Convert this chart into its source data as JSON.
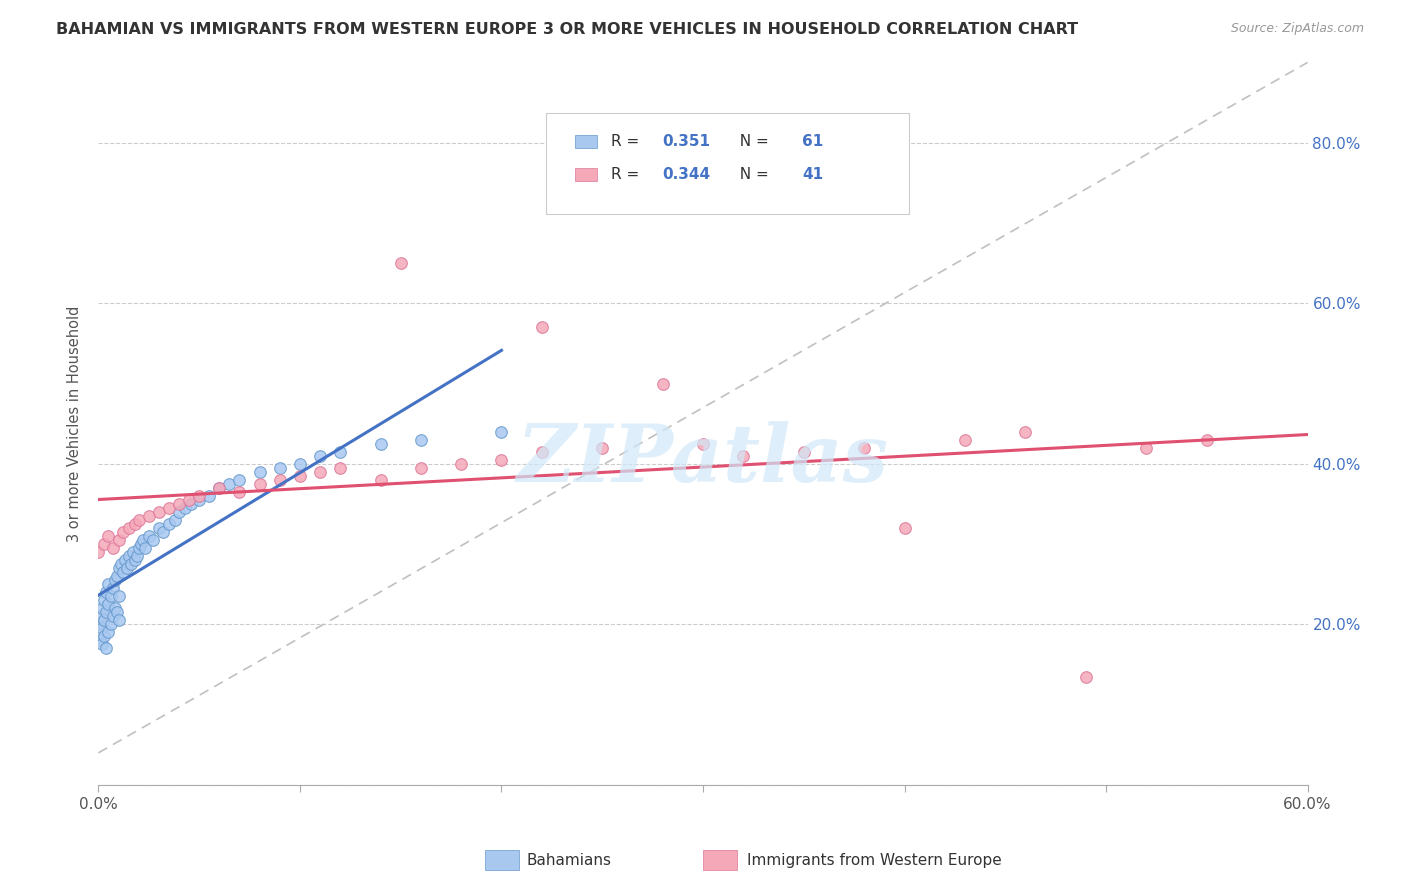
{
  "title": "BAHAMIAN VS IMMIGRANTS FROM WESTERN EUROPE 3 OR MORE VEHICLES IN HOUSEHOLD CORRELATION CHART",
  "source": "Source: ZipAtlas.com",
  "ylabel": "3 or more Vehicles in Household",
  "xlim": [
    0.0,
    0.6
  ],
  "ylim": [
    0.0,
    0.9
  ],
  "color_blue": "#a8c8f0",
  "color_blue_edge": "#6699cc",
  "color_pink": "#f5a8b8",
  "color_pink_edge": "#dd7799",
  "trend_blue": "#4472c4",
  "trend_pink": "#e05070",
  "ref_line_color": "#c0c0c0",
  "watermark": "ZIPatlas",
  "watermark_color": "#d0e8f8",
  "bah_x": [
    0.0,
    0.001,
    0.001,
    0.002,
    0.002,
    0.002,
    0.003,
    0.003,
    0.003,
    0.004,
    0.004,
    0.004,
    0.005,
    0.005,
    0.005,
    0.006,
    0.006,
    0.007,
    0.007,
    0.008,
    0.008,
    0.009,
    0.009,
    0.01,
    0.01,
    0.01,
    0.011,
    0.012,
    0.013,
    0.014,
    0.015,
    0.016,
    0.017,
    0.018,
    0.019,
    0.02,
    0.021,
    0.022,
    0.023,
    0.025,
    0.027,
    0.03,
    0.032,
    0.035,
    0.038,
    0.04,
    0.043,
    0.046,
    0.05,
    0.055,
    0.06,
    0.065,
    0.07,
    0.08,
    0.09,
    0.1,
    0.11,
    0.12,
    0.14,
    0.16,
    0.2
  ],
  "bah_y": [
    0.2,
    0.21,
    0.18,
    0.22,
    0.195,
    0.175,
    0.23,
    0.205,
    0.185,
    0.24,
    0.215,
    0.17,
    0.25,
    0.225,
    0.19,
    0.235,
    0.2,
    0.245,
    0.21,
    0.255,
    0.22,
    0.26,
    0.215,
    0.27,
    0.235,
    0.205,
    0.275,
    0.265,
    0.28,
    0.27,
    0.285,
    0.275,
    0.29,
    0.28,
    0.285,
    0.295,
    0.3,
    0.305,
    0.295,
    0.31,
    0.305,
    0.32,
    0.315,
    0.325,
    0.33,
    0.34,
    0.345,
    0.35,
    0.355,
    0.36,
    0.37,
    0.375,
    0.38,
    0.39,
    0.395,
    0.4,
    0.41,
    0.415,
    0.425,
    0.43,
    0.44
  ],
  "we_x": [
    0.0,
    0.003,
    0.005,
    0.007,
    0.01,
    0.012,
    0.015,
    0.018,
    0.02,
    0.025,
    0.03,
    0.035,
    0.04,
    0.045,
    0.05,
    0.06,
    0.07,
    0.08,
    0.09,
    0.1,
    0.11,
    0.12,
    0.14,
    0.16,
    0.18,
    0.2,
    0.22,
    0.15,
    0.22,
    0.25,
    0.28,
    0.3,
    0.32,
    0.35,
    0.38,
    0.4,
    0.43,
    0.46,
    0.49,
    0.52,
    0.55
  ],
  "we_y": [
    0.29,
    0.3,
    0.31,
    0.295,
    0.305,
    0.315,
    0.32,
    0.325,
    0.33,
    0.335,
    0.34,
    0.345,
    0.35,
    0.355,
    0.36,
    0.37,
    0.365,
    0.375,
    0.38,
    0.385,
    0.39,
    0.395,
    0.38,
    0.395,
    0.4,
    0.405,
    0.415,
    0.65,
    0.57,
    0.42,
    0.5,
    0.425,
    0.41,
    0.415,
    0.42,
    0.32,
    0.43,
    0.44,
    0.135,
    0.42,
    0.43
  ]
}
